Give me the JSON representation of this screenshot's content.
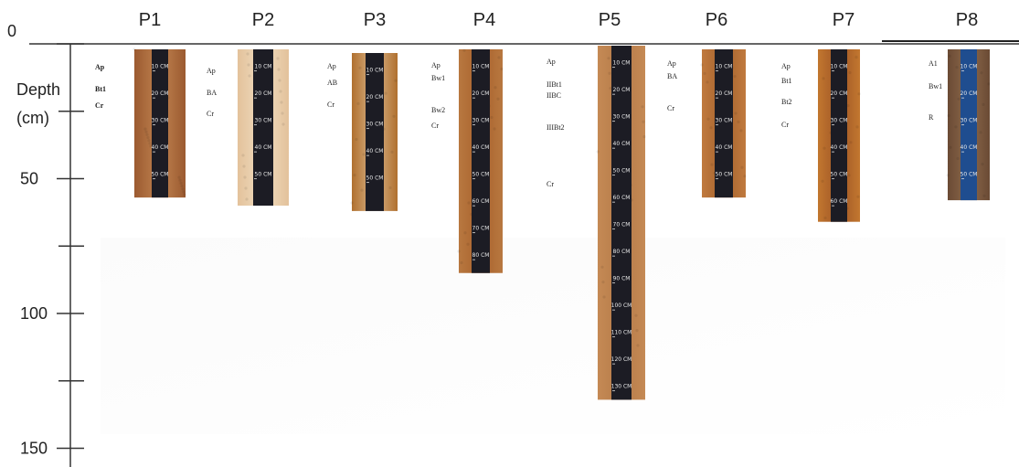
{
  "colors": {
    "axis": "#333333",
    "tape": "#1c1c24",
    "tape_blue": "#1f4d8f"
  },
  "axis": {
    "label_line1": "Depth",
    "label_line2": "(cm)",
    "ticks": [
      {
        "value": 0,
        "label": "0"
      },
      {
        "value": 25,
        "label": ""
      },
      {
        "value": 50,
        "label": "50"
      },
      {
        "value": 75,
        "label": ""
      },
      {
        "value": 100,
        "label": "100"
      },
      {
        "value": 125,
        "label": ""
      },
      {
        "value": 150,
        "label": "150"
      }
    ]
  },
  "profiles": [
    {
      "name": "P1",
      "depth": 57,
      "soil": "#9b5a30",
      "soil2": "#c08350",
      "tape": "dark",
      "horizons": [
        "Ap",
        "Bt1",
        "Cr"
      ],
      "bold": true,
      "tape_labels": [
        "10 CM",
        "20 CM",
        "30 CM",
        "40 CM",
        "50 CM"
      ]
    },
    {
      "name": "P2",
      "depth": 60,
      "soil": "#e3c29b",
      "soil2": "#f0dcc0",
      "tape": "dark",
      "horizons": [
        "Ap",
        "BA",
        "Cr"
      ],
      "bold": false,
      "tape_labels": [
        "10 CM",
        "20 CM",
        "30 CM",
        "40 CM",
        "50 CM"
      ]
    },
    {
      "name": "P3",
      "depth": 62,
      "soil": "#b0702f",
      "soil2": "#d9b58a",
      "tape": "dark",
      "horizons": [
        "Ap",
        "AB",
        "Cr"
      ],
      "bold": false,
      "tape_labels": [
        "10 CM",
        "20 CM",
        "30 CM",
        "40 CM",
        "50 CM"
      ]
    },
    {
      "name": "P4",
      "depth": 85,
      "soil": "#b87840",
      "soil2": "#a8612c",
      "tape": "dark",
      "horizons": [
        "Ap",
        "Bw1",
        "Bw2",
        "Cr"
      ],
      "bold": false,
      "tape_labels": [
        "10 CM",
        "20 CM",
        "30 CM",
        "40 CM",
        "50 CM",
        "60 CM",
        "70 CM",
        "80 CM"
      ]
    },
    {
      "name": "P5",
      "depth": 132,
      "soil": "#c58a55",
      "soil2": "#b57a48",
      "tape": "dark",
      "horizons": [
        "Ap",
        "IIBt1",
        "IIBC",
        "IIIBt2",
        "Cr"
      ],
      "bold": false,
      "tape_labels": [
        "10 CM",
        "20 CM",
        "30 CM",
        "40 CM",
        "50 CM",
        "60 CM",
        "70 CM",
        "80 CM",
        "90 CM",
        "100 CM",
        "110 CM",
        "120 CM",
        "130 CM"
      ]
    },
    {
      "name": "P6",
      "depth": 57,
      "soil": "#c07a3e",
      "soil2": "#a5622e",
      "tape": "dark",
      "horizons": [
        "Ap",
        "BA",
        "Cr"
      ],
      "bold": false,
      "tape_labels": [
        "10 CM",
        "20 CM",
        "30 CM",
        "40 CM",
        "50 CM"
      ]
    },
    {
      "name": "P7",
      "depth": 66,
      "soil": "#c2772f",
      "soil2": "#9e5526",
      "tape": "dark",
      "horizons": [
        "Ap",
        "Bt1",
        "Bt2",
        "Cr"
      ],
      "bold": false,
      "tape_labels": [
        "10 CM",
        "20 CM",
        "30 CM",
        "40 CM",
        "50 CM",
        "60 CM"
      ]
    },
    {
      "name": "P8",
      "depth": 58,
      "soil": "#6a4a34",
      "soil2": "#8d6a4c",
      "tape": "blue",
      "horizons": [
        "A1",
        "Bw1",
        "R"
      ],
      "bold": false,
      "tape_labels": [
        "10 CM",
        "20 CM",
        "30 CM",
        "40 CM",
        "50 CM"
      ]
    }
  ]
}
